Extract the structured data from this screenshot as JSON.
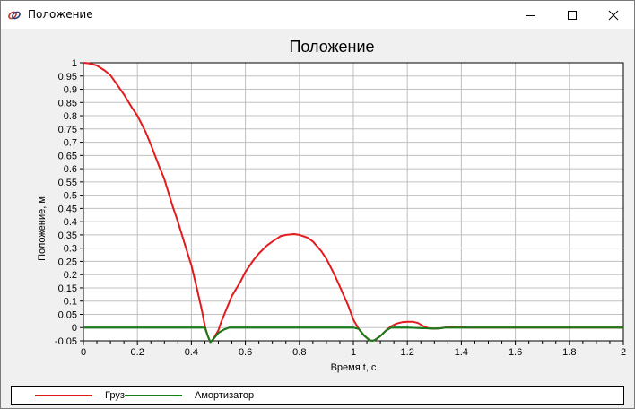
{
  "window": {
    "title": "Положение",
    "icon": "app-logo-icon",
    "controls": [
      "minimize-icon",
      "maximize-icon",
      "close-icon"
    ]
  },
  "colors": {
    "series_gruz": "#e41a1c",
    "series_amort": "#1a7a1a",
    "grid": "#c0c0c0"
  },
  "chart_data": {
    "type": "line",
    "title": "Положение",
    "xlabel": "Время t, с",
    "ylabel": "Положение, м",
    "xlim": [
      0,
      2
    ],
    "ylim": [
      -0.05,
      1
    ],
    "grid": true,
    "legend_position": "bottom",
    "x_ticks": [
      "0",
      "0.2",
      "0.4",
      "0.6",
      "0.8",
      "1",
      "1.2",
      "1.4",
      "1.6",
      "1.8",
      "2"
    ],
    "y_ticks": [
      "-0.05",
      "0",
      "0.05",
      "0.1",
      "0.15",
      "0.2",
      "0.25",
      "0.3",
      "0.35",
      "0.4",
      "0.45",
      "0.5",
      "0.55",
      "0.6",
      "0.65",
      "0.7",
      "0.75",
      "0.8",
      "0.85",
      "0.9",
      "0.95",
      "1"
    ],
    "series": [
      {
        "name": "Груз",
        "color": "#e41a1c",
        "points": [
          [
            0,
            1
          ],
          [
            0.02,
            0.998
          ],
          [
            0.05,
            0.99
          ],
          [
            0.08,
            0.97
          ],
          [
            0.1,
            0.953
          ],
          [
            0.13,
            0.91
          ],
          [
            0.15,
            0.88
          ],
          [
            0.18,
            0.83
          ],
          [
            0.2,
            0.8
          ],
          [
            0.23,
            0.74
          ],
          [
            0.25,
            0.69
          ],
          [
            0.28,
            0.61
          ],
          [
            0.3,
            0.56
          ],
          [
            0.33,
            0.46
          ],
          [
            0.35,
            0.4
          ],
          [
            0.38,
            0.3
          ],
          [
            0.4,
            0.235
          ],
          [
            0.42,
            0.15
          ],
          [
            0.44,
            0.06
          ],
          [
            0.45,
            0.005
          ],
          [
            0.46,
            -0.03
          ],
          [
            0.47,
            -0.055
          ],
          [
            0.48,
            -0.045
          ],
          [
            0.5,
            -0.01
          ],
          [
            0.51,
            0.02
          ],
          [
            0.53,
            0.07
          ],
          [
            0.55,
            0.12
          ],
          [
            0.58,
            0.17
          ],
          [
            0.6,
            0.21
          ],
          [
            0.63,
            0.255
          ],
          [
            0.65,
            0.28
          ],
          [
            0.68,
            0.31
          ],
          [
            0.7,
            0.325
          ],
          [
            0.73,
            0.345
          ],
          [
            0.75,
            0.35
          ],
          [
            0.78,
            0.353
          ],
          [
            0.8,
            0.35
          ],
          [
            0.83,
            0.34
          ],
          [
            0.85,
            0.325
          ],
          [
            0.88,
            0.29
          ],
          [
            0.9,
            0.26
          ],
          [
            0.93,
            0.2
          ],
          [
            0.95,
            0.155
          ],
          [
            0.98,
            0.085
          ],
          [
            1.0,
            0.03
          ],
          [
            1.02,
            -0.005
          ],
          [
            1.04,
            -0.03
          ],
          [
            1.06,
            -0.048
          ],
          [
            1.07,
            -0.05
          ],
          [
            1.08,
            -0.047
          ],
          [
            1.1,
            -0.032
          ],
          [
            1.12,
            -0.012
          ],
          [
            1.14,
            0.005
          ],
          [
            1.16,
            0.015
          ],
          [
            1.18,
            0.02
          ],
          [
            1.2,
            0.022
          ],
          [
            1.22,
            0.022
          ],
          [
            1.24,
            0.017
          ],
          [
            1.26,
            0.005
          ],
          [
            1.28,
            -0.003
          ],
          [
            1.3,
            -0.004
          ],
          [
            1.32,
            -0.003
          ],
          [
            1.34,
            0
          ],
          [
            1.36,
            0.003
          ],
          [
            1.38,
            0.004
          ],
          [
            1.4,
            0.002
          ],
          [
            1.42,
            0
          ],
          [
            1.5,
            0
          ],
          [
            1.6,
            0
          ],
          [
            1.8,
            0
          ],
          [
            2,
            0
          ]
        ]
      },
      {
        "name": "Амортизатор",
        "color": "#1a7a1a",
        "points": [
          [
            0,
            0
          ],
          [
            0.2,
            0
          ],
          [
            0.4,
            0
          ],
          [
            0.45,
            0
          ],
          [
            0.46,
            -0.03
          ],
          [
            0.47,
            -0.055
          ],
          [
            0.48,
            -0.045
          ],
          [
            0.5,
            -0.02
          ],
          [
            0.52,
            -0.008
          ],
          [
            0.54,
            0
          ],
          [
            0.6,
            0
          ],
          [
            0.8,
            0
          ],
          [
            1.0,
            0
          ],
          [
            1.02,
            -0.005
          ],
          [
            1.04,
            -0.03
          ],
          [
            1.06,
            -0.048
          ],
          [
            1.07,
            -0.05
          ],
          [
            1.08,
            -0.047
          ],
          [
            1.1,
            -0.032
          ],
          [
            1.12,
            -0.012
          ],
          [
            1.14,
            0
          ],
          [
            1.2,
            0
          ],
          [
            1.28,
            -0.003
          ],
          [
            1.3,
            -0.004
          ],
          [
            1.32,
            -0.003
          ],
          [
            1.34,
            0
          ],
          [
            1.4,
            0
          ],
          [
            1.6,
            0
          ],
          [
            1.8,
            0
          ],
          [
            2,
            0
          ]
        ]
      }
    ]
  },
  "legend": {
    "items": [
      {
        "label": "Груз",
        "color": "#e41a1c"
      },
      {
        "label": "Амортизатор",
        "color": "#1a7a1a"
      }
    ]
  }
}
